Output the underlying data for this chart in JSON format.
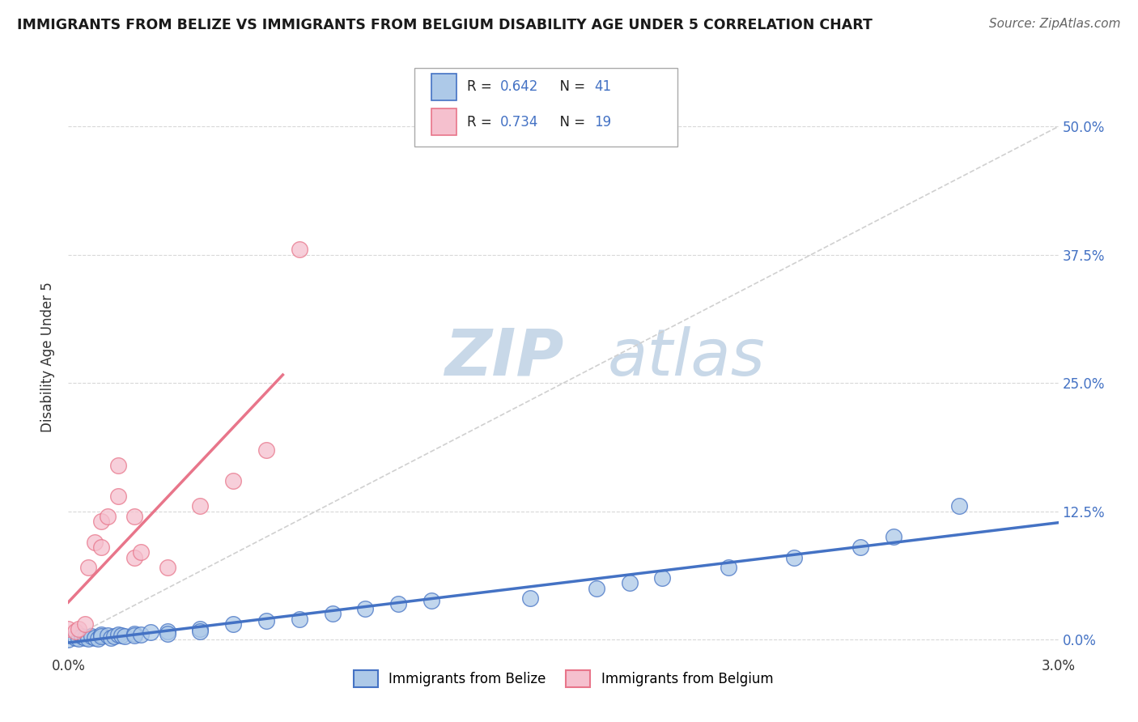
{
  "title": "IMMIGRANTS FROM BELIZE VS IMMIGRANTS FROM BELGIUM DISABILITY AGE UNDER 5 CORRELATION CHART",
  "source": "Source: ZipAtlas.com",
  "ylabel": "Disability Age Under 5",
  "ytick_labels": [
    "0.0%",
    "12.5%",
    "25.0%",
    "37.5%",
    "50.0%"
  ],
  "ytick_values": [
    0.0,
    0.125,
    0.25,
    0.375,
    0.5
  ],
  "xlim": [
    0.0,
    0.03
  ],
  "ylim": [
    -0.01,
    0.56
  ],
  "legend_belize": "Immigrants from Belize",
  "legend_belgium": "Immigrants from Belgium",
  "r_belize": "0.642",
  "n_belize": "41",
  "r_belgium": "0.734",
  "n_belgium": "19",
  "color_belize": "#adc9e8",
  "color_belgium": "#f5c0ce",
  "line_belize": "#4472c4",
  "line_belgium": "#e8758a",
  "line_diagonal_color": "#d0d0d0",
  "belize_points_x": [
    0.0,
    0.0002,
    0.0003,
    0.0004,
    0.0005,
    0.0006,
    0.0007,
    0.0008,
    0.0009,
    0.001,
    0.001,
    0.0012,
    0.0013,
    0.0014,
    0.0015,
    0.0016,
    0.0017,
    0.002,
    0.002,
    0.0022,
    0.0025,
    0.003,
    0.003,
    0.004,
    0.004,
    0.005,
    0.006,
    0.007,
    0.008,
    0.009,
    0.01,
    0.011,
    0.014,
    0.016,
    0.017,
    0.018,
    0.02,
    0.022,
    0.024,
    0.025,
    0.027
  ],
  "belize_points_y": [
    0.0,
    0.002,
    0.001,
    0.003,
    0.002,
    0.001,
    0.003,
    0.002,
    0.001,
    0.005,
    0.003,
    0.004,
    0.002,
    0.003,
    0.005,
    0.004,
    0.003,
    0.006,
    0.004,
    0.005,
    0.007,
    0.008,
    0.006,
    0.01,
    0.008,
    0.015,
    0.018,
    0.02,
    0.025,
    0.03,
    0.035,
    0.038,
    0.04,
    0.05,
    0.055,
    0.06,
    0.07,
    0.08,
    0.09,
    0.1,
    0.13
  ],
  "belgium_points_x": [
    0.0,
    0.0002,
    0.0003,
    0.0005,
    0.0006,
    0.0008,
    0.001,
    0.001,
    0.0012,
    0.0015,
    0.0015,
    0.002,
    0.002,
    0.0022,
    0.003,
    0.004,
    0.005,
    0.006,
    0.007
  ],
  "belgium_points_y": [
    0.01,
    0.008,
    0.01,
    0.015,
    0.07,
    0.095,
    0.09,
    0.115,
    0.12,
    0.17,
    0.14,
    0.12,
    0.08,
    0.085,
    0.07,
    0.13,
    0.155,
    0.185,
    0.38
  ],
  "watermark_zip_color": "#c8d8e8",
  "watermark_atlas_color": "#c8d8e8"
}
